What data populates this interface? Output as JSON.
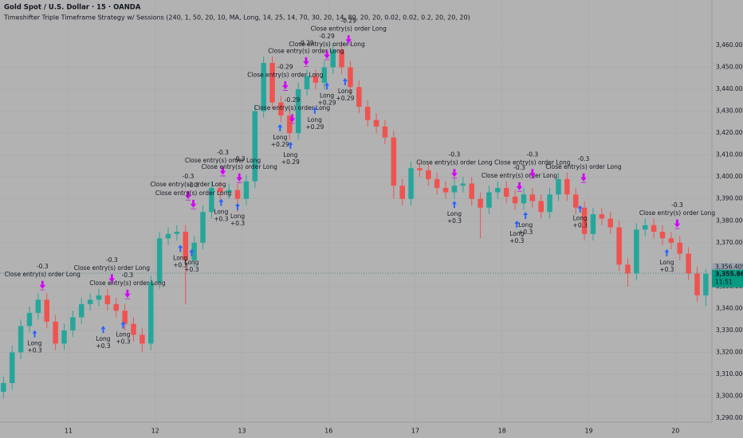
{
  "chart_data": {
    "type": "candlestick",
    "title": "Gold Spot / U.S. Dollar · 15 · OANDA",
    "subtitle": "Timeshifter Triple Timeframe Strategy w/ Sessions (240, 1, 50, 20, 10, MA, Long, 14, 25, 14, 70, 30, 20, 14, 80, 20, 20, 0.02, 0.02, 0.2, 20, 20, 20)",
    "up_color": "#26a69a",
    "down_color": "#ef5350",
    "x": [
      -0.75,
      -0.65,
      -0.55,
      -0.45,
      -0.35,
      -0.25,
      -0.15,
      -0.05,
      0.05,
      0.15,
      0.25,
      0.35,
      0.45,
      0.55,
      0.65,
      0.75,
      0.85,
      0.95,
      1.05,
      1.15,
      1.25,
      1.35,
      1.45,
      1.55,
      1.65,
      1.75,
      1.85,
      1.95,
      2.05,
      2.15,
      2.25,
      2.35,
      2.45,
      2.55,
      2.65,
      2.75,
      2.85,
      2.95,
      3.05,
      3.15,
      3.25,
      3.35,
      3.45,
      3.55,
      3.65,
      3.75,
      3.85,
      3.95,
      4.05,
      4.15,
      4.25,
      4.35,
      4.45,
      4.55,
      4.65,
      4.75,
      4.85,
      4.95,
      5.05,
      5.15,
      5.25,
      5.35,
      5.45,
      5.55,
      5.65,
      5.75,
      5.85,
      5.95,
      6.05,
      6.15,
      6.25,
      6.35,
      6.45,
      6.55,
      6.65,
      6.75,
      6.85,
      6.95,
      7.05,
      7.15,
      7.25,
      7.35
    ],
    "open": [
      3302,
      3306,
      3320,
      3332,
      3338,
      3344,
      3334,
      3324,
      3330,
      3336,
      3342,
      3344,
      3346,
      3342,
      3339,
      3333,
      3328,
      3324,
      3352,
      3372,
      3374,
      3375,
      3362,
      3370,
      3384,
      3395,
      3393,
      3394,
      3390,
      3398,
      3430,
      3452,
      3434,
      3428,
      3420,
      3440,
      3446,
      3443,
      3450,
      3458,
      3450,
      3441,
      3432,
      3426,
      3423,
      3418,
      3396,
      3390,
      3404,
      3403,
      3399,
      3395,
      3393,
      3396,
      3397,
      3390,
      3386,
      3393,
      3395,
      3391,
      3388,
      3392,
      3389,
      3384,
      3392,
      3399,
      3392,
      3386,
      3374,
      3383,
      3381,
      3377,
      3360,
      3356,
      3376,
      3378,
      3375,
      3372,
      3370,
      3365,
      3356,
      3346
    ],
    "high": [
      3309,
      3323,
      3335,
      3341,
      3347,
      3347,
      3337,
      3333,
      3339,
      3345,
      3347,
      3349,
      3349,
      3345,
      3342,
      3336,
      3331,
      3355,
      3375,
      3377,
      3378,
      3378,
      3373,
      3387,
      3398,
      3398,
      3397,
      3397,
      3401,
      3433,
      3455,
      3455,
      3437,
      3431,
      3443,
      3449,
      3449,
      3453,
      3461,
      3461,
      3453,
      3444,
      3435,
      3429,
      3426,
      3421,
      3399,
      3407,
      3407,
      3406,
      3402,
      3398,
      3399,
      3400,
      3400,
      3393,
      3396,
      3398,
      3398,
      3394,
      3395,
      3395,
      3392,
      3395,
      3402,
      3402,
      3395,
      3389,
      3386,
      3386,
      3384,
      3380,
      3363,
      3379,
      3381,
      3381,
      3378,
      3375,
      3373,
      3368,
      3359,
      3358
    ],
    "low": [
      3299,
      3303,
      3317,
      3329,
      3335,
      3331,
      3321,
      3321,
      3327,
      3333,
      3339,
      3341,
      3339,
      3336,
      3330,
      3325,
      3320,
      3321,
      3349,
      3369,
      3371,
      3342,
      3359,
      3367,
      3381,
      3390,
      3390,
      3384,
      3387,
      3395,
      3427,
      3431,
      3425,
      3417,
      3417,
      3437,
      3440,
      3440,
      3447,
      3447,
      3438,
      3429,
      3423,
      3420,
      3415,
      3390,
      3387,
      3387,
      3400,
      3396,
      3392,
      3390,
      3390,
      3393,
      3387,
      3372,
      3383,
      3390,
      3388,
      3385,
      3385,
      3386,
      3381,
      3381,
      3389,
      3389,
      3383,
      3371,
      3371,
      3378,
      3374,
      3357,
      3350,
      3353,
      3373,
      3372,
      3369,
      3367,
      3362,
      3353,
      3343,
      3341
    ],
    "close": [
      3306,
      3320,
      3332,
      3338,
      3344,
      3334,
      3324,
      3330,
      3336,
      3342,
      3344,
      3346,
      3342,
      3339,
      3333,
      3328,
      3324,
      3352,
      3372,
      3374,
      3375,
      3362,
      3370,
      3384,
      3395,
      3393,
      3394,
      3390,
      3398,
      3430,
      3452,
      3434,
      3428,
      3420,
      3440,
      3446,
      3443,
      3450,
      3458,
      3450,
      3441,
      3432,
      3426,
      3423,
      3418,
      3396,
      3390,
      3404,
      3403,
      3399,
      3395,
      3393,
      3396,
      3397,
      3390,
      3386,
      3393,
      3395,
      3391,
      3388,
      3392,
      3389,
      3384,
      3392,
      3399,
      3392,
      3386,
      3374,
      3383,
      3381,
      3377,
      3360,
      3356,
      3376,
      3378,
      3375,
      3372,
      3370,
      3365,
      3356,
      3346,
      3355.865
    ],
    "xlim": [
      -0.79,
      7.42
    ],
    "xticks": [
      {
        "value": 0,
        "label": "11"
      },
      {
        "value": 1,
        "label": "12"
      },
      {
        "value": 2,
        "label": "13"
      },
      {
        "value": 3,
        "label": "16"
      },
      {
        "value": 4,
        "label": "17"
      },
      {
        "value": 5,
        "label": "18"
      },
      {
        "value": 6,
        "label": "19"
      },
      {
        "value": 7,
        "label": "20"
      }
    ],
    "ylim": [
      3288.2,
      3480.7
    ],
    "yticks": [
      {
        "value": 3290,
        "label": "3,290.000"
      },
      {
        "value": 3300,
        "label": "3,300.000"
      },
      {
        "value": 3310,
        "label": "3,310.000"
      },
      {
        "value": 3320,
        "label": "3,320.000"
      },
      {
        "value": 3330,
        "label": "3,330.000"
      },
      {
        "value": 3340,
        "label": "3,340.000"
      },
      {
        "value": 3350,
        "label": "3,350.000"
      },
      {
        "value": 3370,
        "label": "3,370.000"
      },
      {
        "value": 3380,
        "label": "3,380.000"
      },
      {
        "value": 3390,
        "label": "3,390.000"
      },
      {
        "value": 3400,
        "label": "3,400.000"
      },
      {
        "value": 3410,
        "label": "3,410.000"
      },
      {
        "value": 3420,
        "label": "3,420.000"
      },
      {
        "value": 3430,
        "label": "3,430.000"
      },
      {
        "value": 3440,
        "label": "3,440.000"
      },
      {
        "value": 3450,
        "label": "3,450.000"
      },
      {
        "value": 3460,
        "label": "3,460.000"
      }
    ],
    "prev_price": {
      "value": 3356.405,
      "label": "3,356.405"
    },
    "last_price": {
      "value": 3355.865,
      "label": "3,355.865"
    },
    "countdown": "11:51",
    "trades": [
      {
        "entry_x": -0.39,
        "entry_price": 3333,
        "exit_x": -0.3,
        "exit_price": 3347,
        "entry_label": "Long",
        "entry_pnl": "+0.3",
        "exit_label": "Close entry(s) order Long",
        "exit_pnl": "-0.3"
      },
      {
        "entry_x": 0.4,
        "entry_price": 3335,
        "exit_x": 0.5,
        "exit_price": 3350,
        "entry_label": "Long",
        "entry_pnl": "+0.3",
        "exit_label": "Close entry(s) order Long",
        "exit_pnl": "-0.3"
      },
      {
        "entry_x": 0.63,
        "entry_price": 3337,
        "exit_x": 0.68,
        "exit_price": 3343,
        "entry_label": "Long",
        "entry_pnl": "+0.3",
        "exit_label": "Close entry(s) order Long",
        "exit_pnl": "-0.3"
      },
      {
        "entry_x": 1.29,
        "entry_price": 3372,
        "exit_x": 1.38,
        "exit_price": 3388,
        "entry_label": "Long",
        "entry_pnl": "+0.3",
        "exit_label": "Close entry(s) order Long",
        "exit_pnl": "-0.3"
      },
      {
        "entry_x": 1.42,
        "entry_price": 3370,
        "exit_x": 1.44,
        "exit_price": 3384,
        "entry_label": "Long",
        "entry_pnl": "+0.3",
        "exit_label": "Close entry(s) order Long",
        "exit_pnl": "-0.3"
      },
      {
        "entry_x": 1.76,
        "entry_price": 3393,
        "exit_x": 1.78,
        "exit_price": 3399,
        "entry_label": "Long",
        "entry_pnl": "+0.3",
        "exit_label": "Close entry(s) order Long",
        "exit_pnl": "-0.3"
      },
      {
        "entry_x": 1.95,
        "entry_price": 3391,
        "exit_x": 1.97,
        "exit_price": 3396,
        "entry_label": "Long",
        "entry_pnl": "+0.3",
        "exit_label": "Close entry(s) order Long",
        "exit_pnl": "-0.3"
      },
      {
        "entry_x": 2.44,
        "entry_price": 3427,
        "exit_x": 2.5,
        "exit_price": 3438,
        "entry_label": "Long",
        "entry_pnl": "+0.29",
        "exit_label": "Close entry(s) order Long",
        "exit_pnl": "-0.29"
      },
      {
        "entry_x": 2.56,
        "entry_price": 3419,
        "exit_x": 2.58,
        "exit_price": 3423,
        "entry_label": "Long",
        "entry_pnl": "+0.29",
        "exit_label": "Close entry(s) order Long",
        "exit_pnl": "-0.29"
      },
      {
        "entry_x": 2.84,
        "entry_price": 3435,
        "exit_x": 2.74,
        "exit_price": 3449,
        "entry_label": "Long",
        "entry_pnl": "+0.29",
        "exit_label": "Close entry(s) order Long",
        "exit_pnl": "-0.29"
      },
      {
        "entry_x": 3.19,
        "entry_price": 3448,
        "exit_x": 3.23,
        "exit_price": 3459,
        "entry_label": "Long",
        "entry_pnl": "+0.29",
        "exit_label": "Close entry(s) order Long",
        "exit_pnl": "-0.29"
      },
      {
        "entry_x": 2.98,
        "entry_price": 3446,
        "exit_x": 2.98,
        "exit_price": 3452,
        "entry_label": "Long",
        "entry_pnl": "+0.29",
        "exit_label": "Close entry(s) order Long",
        "exit_pnl": "-0.29"
      },
      {
        "entry_x": 4.45,
        "entry_price": 3392,
        "exit_x": 4.45,
        "exit_price": 3398,
        "entry_label": "Long",
        "entry_pnl": "+0.3",
        "exit_label": "Close entry(s) order Long",
        "exit_pnl": "-0.3"
      },
      {
        "entry_x": 5.17,
        "entry_price": 3383,
        "exit_x": 5.2,
        "exit_price": 3392,
        "entry_label": "Long",
        "entry_pnl": "+0.3",
        "exit_label": "Close entry(s) order Long",
        "exit_pnl": "-0.3"
      },
      {
        "entry_x": 5.27,
        "entry_price": 3387,
        "exit_x": 5.35,
        "exit_price": 3398,
        "entry_label": "Long",
        "entry_pnl": "+0.3",
        "exit_label": "Close entry(s) order Long",
        "exit_pnl": "-0.3"
      },
      {
        "entry_x": 5.9,
        "entry_price": 3390,
        "exit_x": 5.94,
        "exit_price": 3396,
        "entry_label": "Long",
        "entry_pnl": "+0.3",
        "exit_label": "Close entry(s) order Long",
        "exit_pnl": "-0.3"
      },
      {
        "entry_x": 6.9,
        "entry_price": 3370,
        "exit_x": 7.02,
        "exit_price": 3375,
        "entry_label": "Long",
        "entry_pnl": "+0.3",
        "exit_label": "Close entry(s) order Long",
        "exit_pnl": "-0.3"
      }
    ]
  }
}
